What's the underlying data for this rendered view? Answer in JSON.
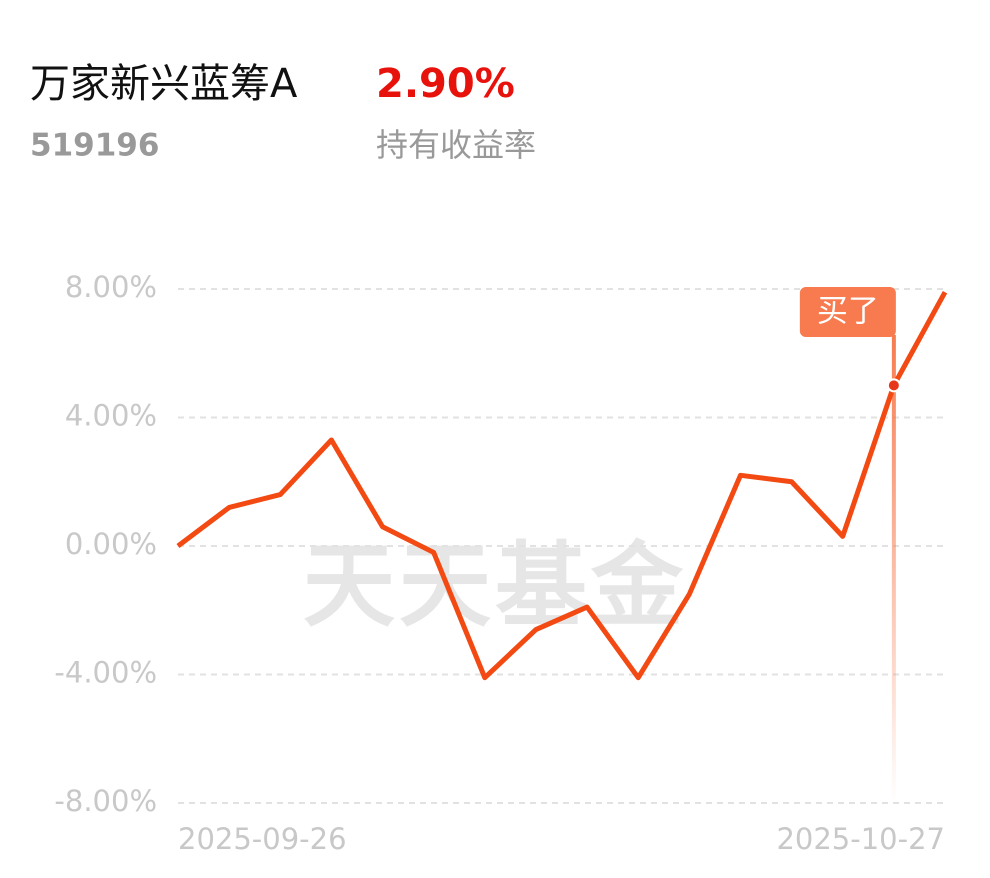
{
  "header": {
    "title": "万家新兴蓝筹A",
    "code": "519196",
    "return": "2.90%",
    "return_label": "持有收益率"
  },
  "chart_data": {
    "type": "line",
    "categories": [
      "2025-09-26",
      null,
      null,
      null,
      null,
      null,
      null,
      null,
      null,
      null,
      null,
      null,
      null,
      null,
      null,
      "2025-10-27"
    ],
    "series": [
      {
        "color": "#f24a12",
        "values": [
          0,
          1.2,
          1.6,
          3.3,
          0.6,
          -0.2,
          -4.1,
          -2.6,
          -1.9,
          -4.1,
          -1.5,
          2.2,
          2.0,
          0.3,
          5.0,
          7.9
        ]
      }
    ],
    "ylim": [
      -8,
      8
    ],
    "yticks": [
      {
        "value": 8,
        "label": "8.00%"
      },
      {
        "value": 4,
        "label": "4.00%"
      },
      {
        "value": 0,
        "label": "0.00%"
      },
      {
        "value": -4,
        "label": "-4.00%"
      },
      {
        "value": -8,
        "label": "-8.00%"
      }
    ],
    "grid": true,
    "annotation": {
      "text": "买了",
      "index": 14
    },
    "watermark": "天天基金"
  }
}
